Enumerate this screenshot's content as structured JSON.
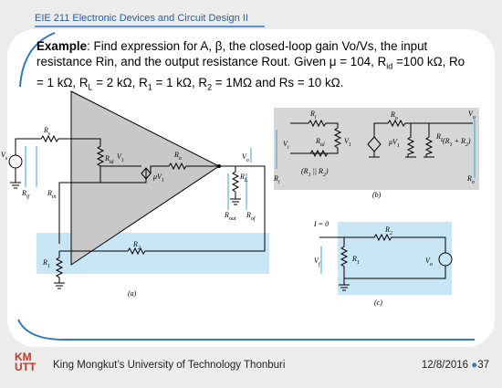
{
  "header": {
    "course": "EIE 211 Electronic Devices and Circuit Design II"
  },
  "body": {
    "segments": [
      "Example",
      ": Find expression for A, β, the closed-loop gain Vo/Vs, the input resistance Rin, and the output resistance Rout. Given μ = 104, R",
      "id",
      " =100 kΩ, Ro = 1 kΩ, R",
      "L",
      " = 2 kΩ, R",
      "1",
      " = 1 kΩ, R",
      "2",
      " = 1MΩ and Rs = 10 kΩ."
    ]
  },
  "figures": {
    "a": {
      "caption": "(a)",
      "labels": [
        [
          "R",
          "s"
        ],
        [
          "V",
          "s"
        ],
        [
          "R",
          "id"
        ],
        [
          "V",
          "1"
        ],
        [
          "R",
          "o"
        ],
        [
          "μV",
          "1"
        ],
        [
          "R",
          "L"
        ],
        [
          "V",
          "o"
        ],
        [
          "R",
          "if"
        ],
        [
          "R",
          "in"
        ],
        [
          "R",
          "out"
        ],
        [
          "R",
          "of"
        ],
        [
          "R",
          "2"
        ],
        [
          "R",
          "1"
        ]
      ]
    },
    "b": {
      "caption": "(b)",
      "labels": [
        [
          "R",
          "i"
        ],
        [
          "V",
          "i"
        ],
        [
          "R",
          "id"
        ],
        [
          "V",
          "1"
        ],
        [
          "R",
          "o"
        ],
        [
          "μV",
          "1"
        ],
        [
          "R",
          "L"
        ],
        [
          "(R",
          "1",
          " + R",
          "2",
          ")"
        ],
        [
          "(R",
          "1",
          " || R",
          "2",
          ")"
        ],
        [
          "R",
          "i"
        ],
        [
          "V",
          "o"
        ],
        [
          "R",
          "o"
        ]
      ]
    },
    "c": {
      "caption": "(c)",
      "labels": [
        [
          "I = 0"
        ],
        [
          "V",
          "f"
        ],
        [
          "R",
          "2"
        ],
        [
          "R",
          "1"
        ],
        [
          "V",
          "o"
        ]
      ]
    }
  },
  "footer": {
    "university": "King Mongkut’s University of Technology Thonburi",
    "date": "12/8/2016",
    "page": "37",
    "logo": [
      "KM",
      "UTT"
    ]
  }
}
